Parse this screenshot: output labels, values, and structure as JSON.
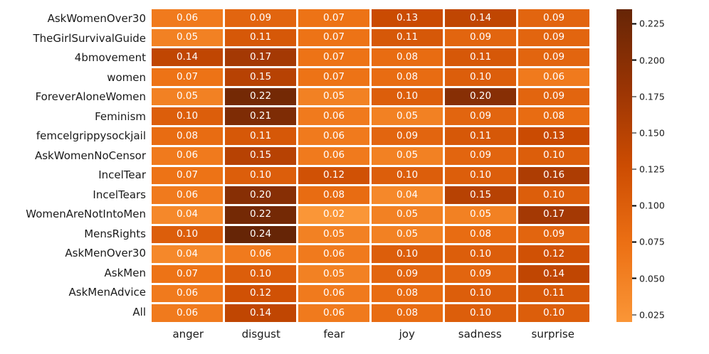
{
  "chart_data": {
    "type": "heatmap",
    "title": "",
    "xlabel": "",
    "ylabel": "",
    "rows": [
      "AskWomenOver30",
      "TheGirlSurvivalGuide",
      "4bmovement",
      "women",
      "ForeverAloneWomen",
      "Feminism",
      "femcelgrippysockjail",
      "AskWomenNoCensor",
      "IncelTear",
      "IncelTears",
      "WomenAreNotIntoMen",
      "MensRights",
      "AskMenOver30",
      "AskMen",
      "AskMenAdvice",
      "All"
    ],
    "columns": [
      "anger",
      "disgust",
      "fear",
      "joy",
      "sadness",
      "surprise"
    ],
    "values": [
      [
        0.06,
        0.09,
        0.07,
        0.13,
        0.14,
        0.09
      ],
      [
        0.05,
        0.11,
        0.07,
        0.11,
        0.09,
        0.09
      ],
      [
        0.14,
        0.17,
        0.07,
        0.08,
        0.11,
        0.09
      ],
      [
        0.07,
        0.15,
        0.07,
        0.08,
        0.1,
        0.06
      ],
      [
        0.05,
        0.22,
        0.05,
        0.1,
        0.2,
        0.09
      ],
      [
        0.1,
        0.21,
        0.06,
        0.05,
        0.09,
        0.08
      ],
      [
        0.08,
        0.11,
        0.06,
        0.09,
        0.11,
        0.13
      ],
      [
        0.06,
        0.15,
        0.06,
        0.05,
        0.09,
        0.1
      ],
      [
        0.07,
        0.1,
        0.12,
        0.1,
        0.1,
        0.16
      ],
      [
        0.06,
        0.2,
        0.08,
        0.04,
        0.15,
        0.1
      ],
      [
        0.04,
        0.22,
        0.02,
        0.05,
        0.05,
        0.17
      ],
      [
        0.1,
        0.24,
        0.05,
        0.05,
        0.08,
        0.09
      ],
      [
        0.04,
        0.06,
        0.06,
        0.1,
        0.1,
        0.12
      ],
      [
        0.07,
        0.1,
        0.05,
        0.09,
        0.09,
        0.14
      ],
      [
        0.06,
        0.12,
        0.06,
        0.08,
        0.1,
        0.11
      ],
      [
        0.06,
        0.14,
        0.06,
        0.08,
        0.1,
        0.1
      ]
    ],
    "value_decimals": 2,
    "vmin": 0.02,
    "vmax": 0.235,
    "annotation_text_color": "#ffffff",
    "gridline_color": "#ffffff",
    "axis_label_color": "#1a1a1a",
    "grid_on": false,
    "legend_position": "colorbar-right",
    "colormap": {
      "name": "oranges-dark",
      "stops": [
        {
          "t": 0.0,
          "color": "#fa9637"
        },
        {
          "t": 0.25,
          "color": "#ec7014"
        },
        {
          "t": 0.5,
          "color": "#cc4c02"
        },
        {
          "t": 0.75,
          "color": "#993404"
        },
        {
          "t": 1.0,
          "color": "#662506"
        }
      ]
    },
    "colorbar": {
      "ticks": [
        {
          "value": 0.225,
          "label": "0.225"
        },
        {
          "value": 0.2,
          "label": "0.200"
        },
        {
          "value": 0.175,
          "label": "0.175"
        },
        {
          "value": 0.15,
          "label": "0.150"
        },
        {
          "value": 0.125,
          "label": "0.125"
        },
        {
          "value": 0.1,
          "label": "0.100"
        },
        {
          "value": 0.075,
          "label": "0.075"
        },
        {
          "value": 0.05,
          "label": "0.050"
        },
        {
          "value": 0.025,
          "label": "0.025"
        }
      ]
    }
  }
}
